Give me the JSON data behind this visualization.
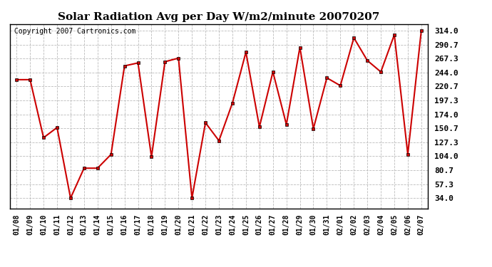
{
  "title": "Solar Radiation Avg per Day W/m2/minute 20070207",
  "copyright": "Copyright 2007 Cartronics.com",
  "dates": [
    "01/08",
    "01/09",
    "01/10",
    "01/11",
    "01/12",
    "01/13",
    "01/14",
    "01/15",
    "01/16",
    "01/17",
    "01/18",
    "01/19",
    "01/20",
    "01/21",
    "01/22",
    "01/23",
    "01/24",
    "01/25",
    "01/26",
    "01/27",
    "01/28",
    "01/29",
    "01/30",
    "01/31",
    "02/01",
    "02/02",
    "02/03",
    "02/04",
    "02/05",
    "02/06",
    "02/07"
  ],
  "values": [
    232,
    232,
    135,
    152,
    34,
    84,
    84,
    107,
    255,
    260,
    103,
    262,
    268,
    34,
    160,
    130,
    193,
    278,
    153,
    245,
    157,
    286,
    150,
    235,
    222,
    302,
    264,
    245,
    307,
    107,
    314
  ],
  "line_color": "#cc0000",
  "marker": "s",
  "marker_size": 3,
  "bg_color": "#ffffff",
  "grid_color": "#bbbbbb",
  "yticks": [
    34.0,
    57.3,
    80.7,
    104.0,
    127.3,
    150.7,
    174.0,
    197.3,
    220.7,
    244.0,
    267.3,
    290.7,
    314.0
  ],
  "ylim": [
    17,
    325
  ],
  "title_fontsize": 11,
  "xlabel_fontsize": 7,
  "ylabel_fontsize": 8,
  "copyright_fontsize": 7,
  "linewidth": 1.5
}
